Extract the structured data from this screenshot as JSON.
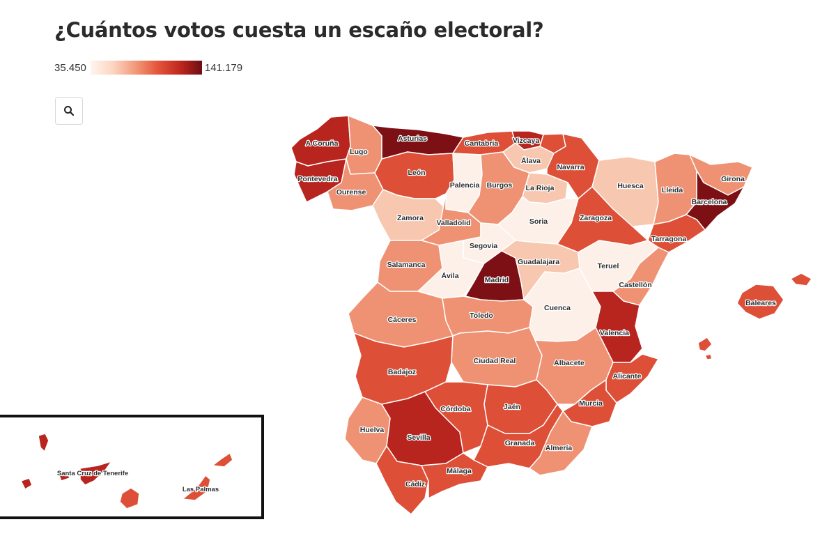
{
  "title": "¿Cuántos votos cuesta un escaño electoral?",
  "legend": {
    "min_label": "35.450",
    "max_label": "141.179",
    "min": 35450,
    "max": 141179
  },
  "search": {
    "icon": "search-icon"
  },
  "colors": {
    "c1": "#fdf0e8",
    "c2": "#f7c7b0",
    "c3": "#ef9273",
    "c4": "#dd4f37",
    "c5": "#b8241e",
    "c6": "#7d1015"
  },
  "provinces": {
    "coruna": {
      "name": "A Coruña",
      "level": 5
    },
    "lugo": {
      "name": "Lugo",
      "level": 3
    },
    "pontevedra": {
      "name": "Pontevedra",
      "level": 5
    },
    "ourense": {
      "name": "Ourense",
      "level": 3
    },
    "asturias": {
      "name": "Asturias",
      "level": 6
    },
    "cantabria": {
      "name": "Cantabria",
      "level": 4
    },
    "vizcaya": {
      "name": "Vizcaya",
      "level": 5
    },
    "guipuzcoa": {
      "name": "",
      "level": 4
    },
    "alava": {
      "name": "Álava",
      "level": 2
    },
    "navarra": {
      "name": "Navarra",
      "level": 4
    },
    "leon": {
      "name": "León",
      "level": 4
    },
    "palencia": {
      "name": "Palencia",
      "level": 1
    },
    "burgos": {
      "name": "Burgos",
      "level": 3
    },
    "larioja": {
      "name": "La Rioja",
      "level": 2
    },
    "huesca": {
      "name": "Huesca",
      "level": 2
    },
    "lleida": {
      "name": "Lleida",
      "level": 3
    },
    "girona": {
      "name": "Girona",
      "level": 3
    },
    "barcelona": {
      "name": "Barcelona",
      "level": 6
    },
    "tarragona": {
      "name": "Tarragona",
      "level": 4
    },
    "zaragoza": {
      "name": "Zaragoza",
      "level": 4
    },
    "soria": {
      "name": "Soria",
      "level": 1
    },
    "zamora": {
      "name": "Zamora",
      "level": 2
    },
    "valladolid": {
      "name": "Valladolid",
      "level": 3
    },
    "segovia": {
      "name": "Segovia",
      "level": 1
    },
    "salamanca": {
      "name": "Salamanca",
      "level": 3
    },
    "avila": {
      "name": "Ávila",
      "level": 1
    },
    "madrid": {
      "name": "Madrid",
      "level": 6
    },
    "guadalajara": {
      "name": "Guadalajara",
      "level": 2
    },
    "teruel": {
      "name": "Teruel",
      "level": 1
    },
    "castellon": {
      "name": "Castellón",
      "level": 3
    },
    "caceres": {
      "name": "Cáceres",
      "level": 3
    },
    "toledo": {
      "name": "Toledo",
      "level": 3
    },
    "cuenca": {
      "name": "Cuenca",
      "level": 1
    },
    "valencia": {
      "name": "Valencia",
      "level": 5
    },
    "baleares": {
      "name": "Baleares",
      "level": 4
    },
    "badajoz": {
      "name": "Badajoz",
      "level": 4
    },
    "ciudadreal": {
      "name": "Ciudad Real",
      "level": 3
    },
    "albacete": {
      "name": "Albacete",
      "level": 3
    },
    "alicante": {
      "name": "Alicante",
      "level": 4
    },
    "cordoba": {
      "name": "Córdoba",
      "level": 4
    },
    "jaen": {
      "name": "Jaén",
      "level": 4
    },
    "murcia": {
      "name": "Murcia",
      "level": 4
    },
    "huelva": {
      "name": "Huelva",
      "level": 3
    },
    "sevilla": {
      "name": "Sevilla",
      "level": 5
    },
    "granada": {
      "name": "Granada",
      "level": 4
    },
    "almeria": {
      "name": "Almería",
      "level": 3
    },
    "cadiz": {
      "name": "Cádiz",
      "level": 4
    },
    "malaga": {
      "name": "Málaga",
      "level": 4
    },
    "tenerife": {
      "name": "Santa Cruz de Tenerife",
      "level": 5
    },
    "laspalmas": {
      "name": "Las Palmas",
      "level": 4
    }
  }
}
